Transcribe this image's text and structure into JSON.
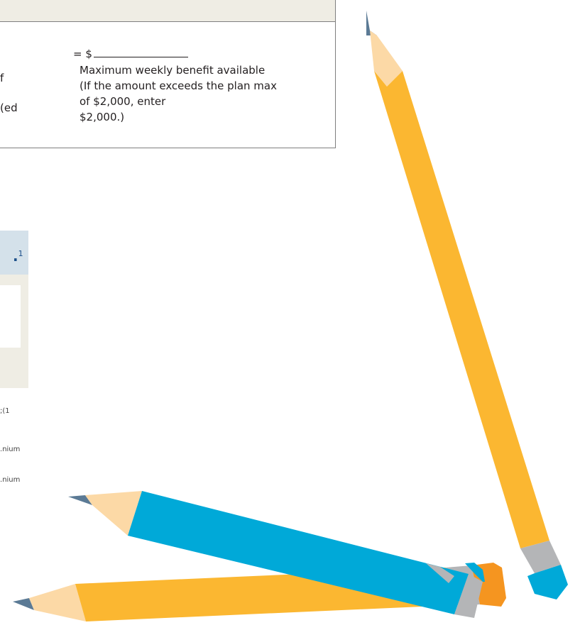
{
  "calculation": {
    "frag_line_1": "f",
    "frag_line_2": "ed)",
    "equals_dollar": "= $",
    "max_lines": [
      "Maximum weekly benefit available",
      "(If the amount exceeds the plan max",
      "of $2,000, enter",
      "$2,000.)"
    ]
  },
  "info_box": {
    "footnote_marker": "1"
  },
  "footnotes": [
    "1);",
    "nium.",
    "nium."
  ],
  "colors": {
    "header_bg": "#efede4",
    "info_header_bg": "#d4e1ea",
    "pencil_yellow": "#fbb731",
    "pencil_blue": "#00a9d8",
    "pencil_wood": "#fcd9a6",
    "pencil_lead": "#5b7a95",
    "ferrule_gray": "#b4b5b7",
    "eraser_orange": "#f59520"
  }
}
